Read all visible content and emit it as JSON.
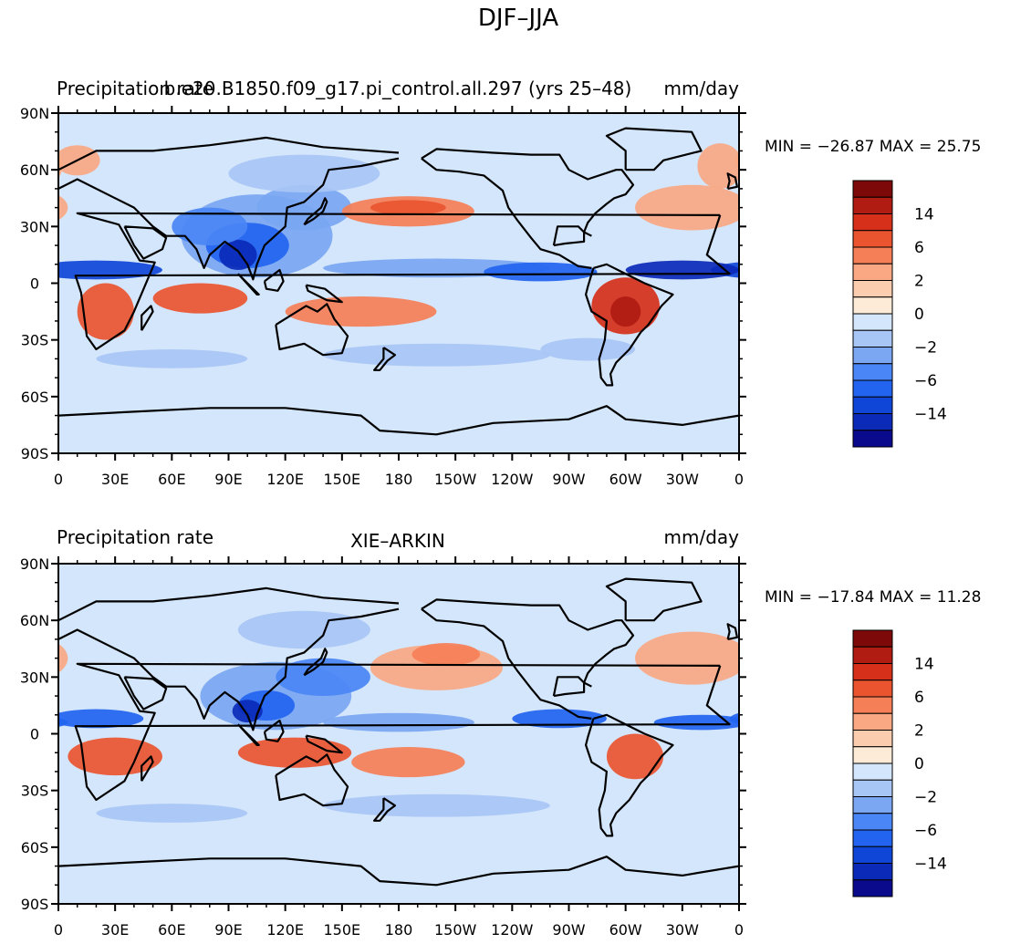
{
  "figure": {
    "main_title": "DJF–JJA"
  },
  "panels": [
    {
      "left_title": "Precipitation rate",
      "center_title": "b.e20.B1850.f09_g17.pi_control.all.297 (yrs 25–48)",
      "right_title": "mm/day",
      "min_max": "MIN = −26.87 MAX =  25.75"
    },
    {
      "left_title": "Precipitation rate",
      "center_title": "XIE–ARKIN",
      "right_title": "mm/day",
      "min_max": "MIN = −17.84 MAX =  11.28"
    }
  ],
  "axes": {
    "lat_ticks": [
      "90N",
      "60N",
      "30N",
      "0",
      "30S",
      "60S",
      "90S"
    ],
    "lon_ticks": [
      "0",
      "30E",
      "60E",
      "90E",
      "120E",
      "150E",
      "180",
      "150W",
      "120W",
      "90W",
      "60W",
      "30W",
      "0"
    ]
  },
  "colorbar": {
    "labels": [
      "14",
      "6",
      "2",
      "0",
      "−2",
      "−6",
      "−14"
    ],
    "colors": [
      "#0a0a8c",
      "#0b2ab8",
      "#0f46d8",
      "#2264f0",
      "#4a86f5",
      "#7aa6f2",
      "#a8c6f5",
      "#d4e6fb",
      "#fdebd8",
      "#fcccae",
      "#f9a883",
      "#f57f57",
      "#ea5530",
      "#d6301a",
      "#b01b12",
      "#7d0a08"
    ]
  },
  "colors": {
    "land_outline": "#000000",
    "background_field": "#d4e6fb"
  }
}
